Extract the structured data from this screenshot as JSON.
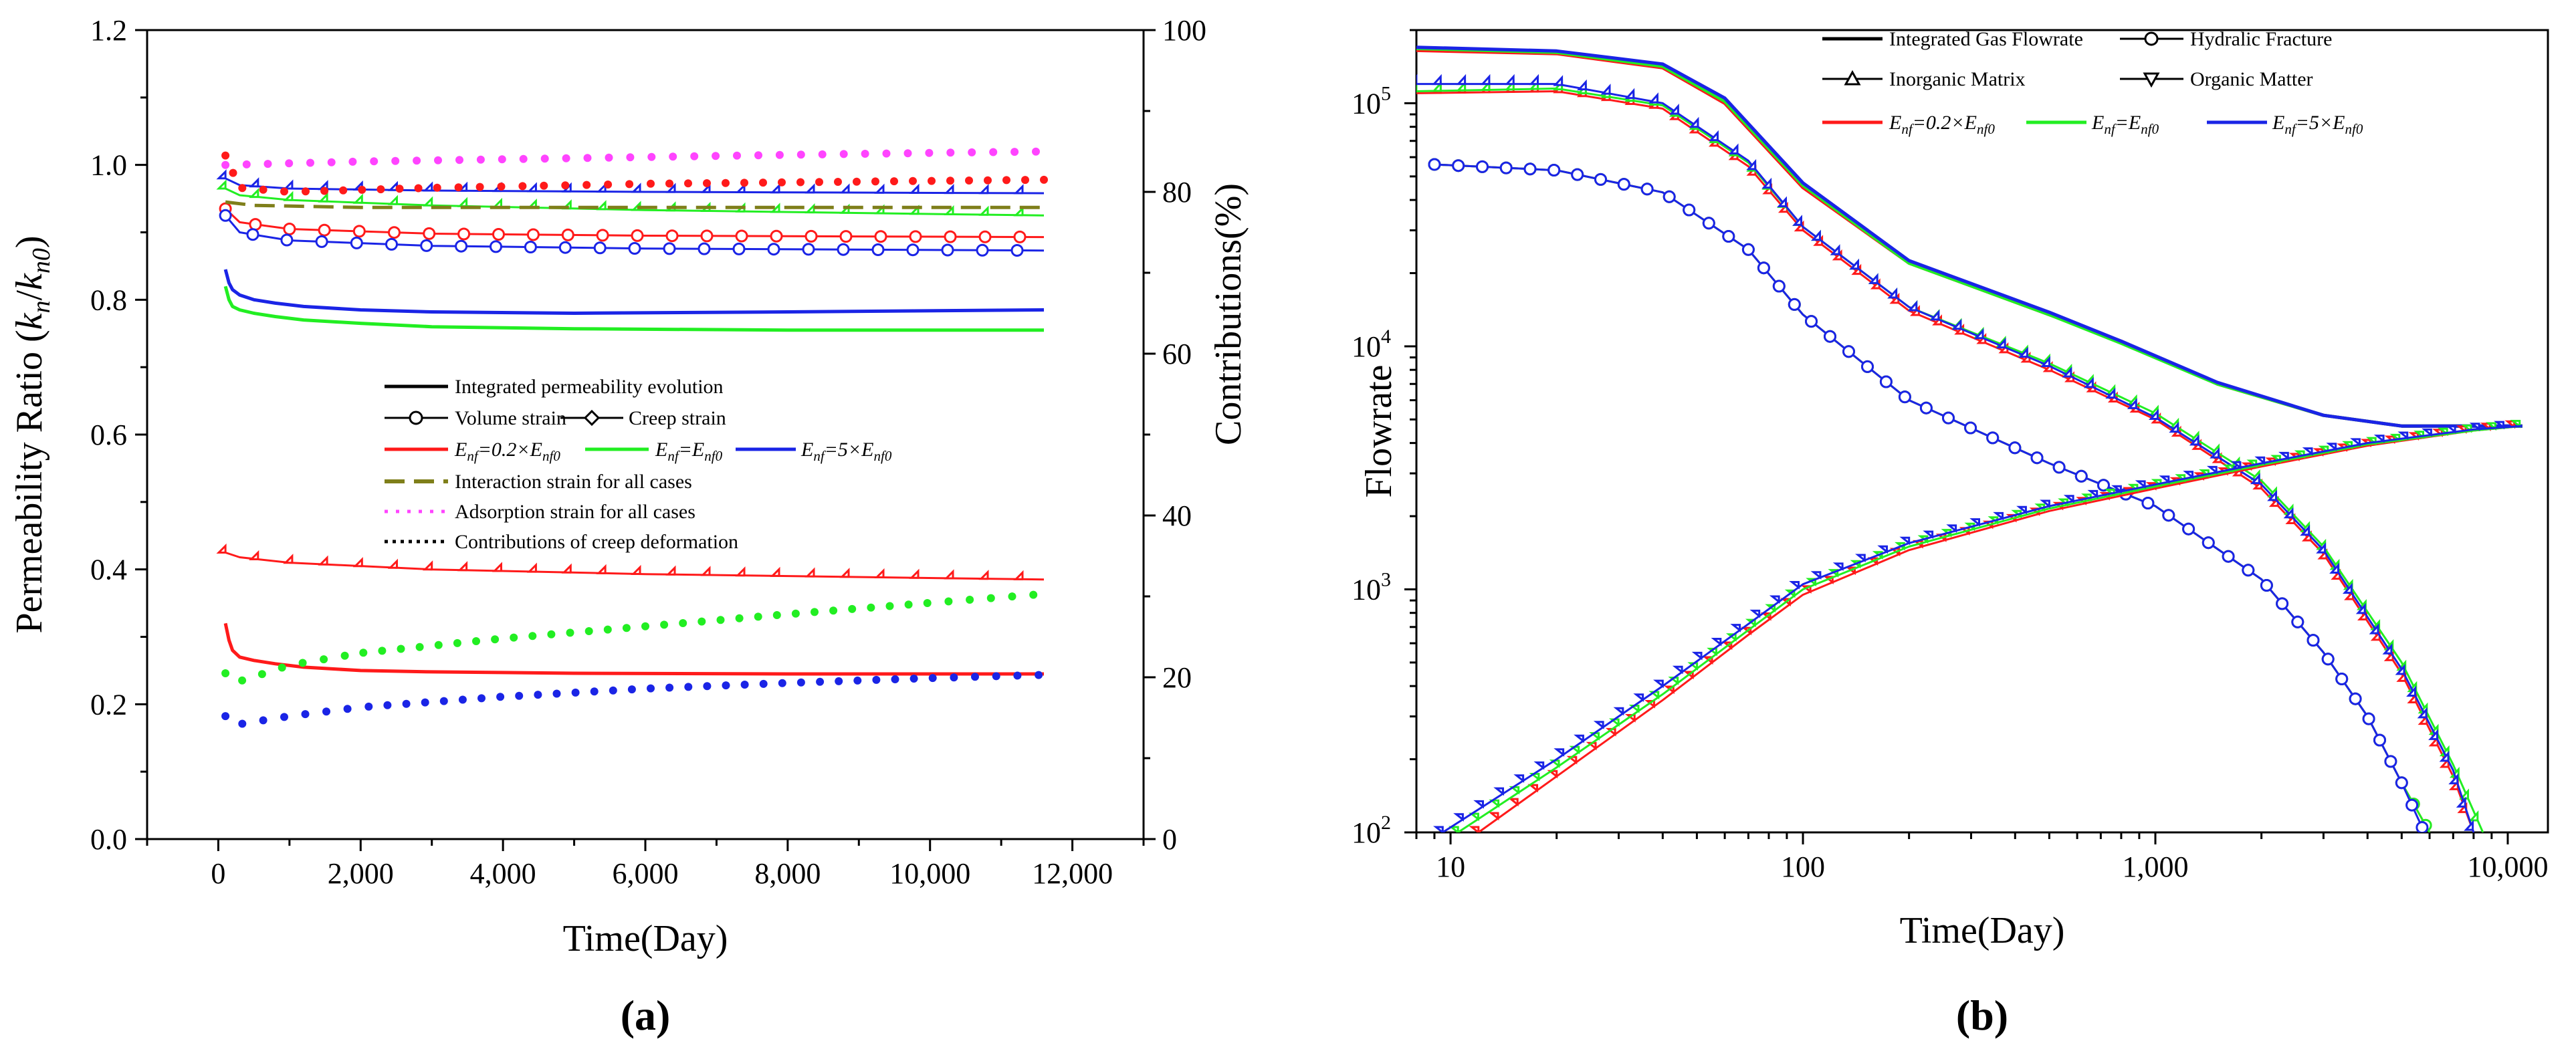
{
  "panel_labels": {
    "a": "(a)",
    "b": "(b)"
  },
  "colors": {
    "red": "#ff1a1a",
    "green": "#22ee22",
    "blue": "#1a24e6",
    "olive": "#7f7f1a",
    "magenta": "#ff44ff",
    "black": "#000000"
  },
  "chart_data": [
    {
      "id": "a",
      "type": "line",
      "xlabel": "Time(Day)",
      "ylabel": "Permeability Ratio (kn/kn0)",
      "ylabel_parts": {
        "main": "Permeability Ratio (",
        "k1": "k",
        "s1": "n",
        "slash": "/",
        "k2": "k",
        "s2": "n0",
        "end": ")"
      },
      "y2label": "Contributions(%)",
      "xlim": [
        -1000,
        13000
      ],
      "xticks": [
        0,
        2000,
        4000,
        6000,
        8000,
        10000,
        12000
      ],
      "xtick_labels": [
        "0",
        "2,000",
        "4,000",
        "6,000",
        "8,000",
        "10,000",
        "12,000"
      ],
      "ylim": [
        0,
        1.2
      ],
      "yticks": [
        0.0,
        0.2,
        0.4,
        0.6,
        0.8,
        1.0,
        1.2
      ],
      "ytick_labels": [
        "0.0",
        "0.2",
        "0.4",
        "0.6",
        "0.8",
        "1.0",
        "1.2"
      ],
      "y2lim": [
        0,
        100
      ],
      "y2ticks": [
        0,
        20,
        40,
        60,
        80,
        100
      ],
      "y2tick_labels": [
        "0",
        "20",
        "40",
        "60",
        "80",
        "100"
      ],
      "legend": {
        "position": "center",
        "rows": [
          [
            {
              "label": "Integrated permeability evolution",
              "style": "solid",
              "color": "black"
            }
          ],
          [
            {
              "label": "Volume strain",
              "style": "solid",
              "marker": "circle",
              "color": "black"
            },
            {
              "label": "Creep strain",
              "style": "solid",
              "marker": "diamond",
              "color": "black"
            }
          ],
          [
            {
              "label": "Enf=0.2×Enf0",
              "style": "solid",
              "color": "red"
            },
            {
              "label": "Enf=Enf0",
              "style": "solid",
              "color": "green"
            },
            {
              "label": "Enf=5×Enf0",
              "style": "solid",
              "color": "blue"
            }
          ],
          [
            {
              "label": "Interaction strain for all cases",
              "style": "dash",
              "color": "olive"
            }
          ],
          [
            {
              "label": "Adsorption strain for all cases",
              "style": "dot",
              "color": "magenta"
            }
          ],
          [
            {
              "label": "Contributions of creep deformation",
              "style": "dot",
              "color": "black"
            }
          ]
        ]
      },
      "series": [
        {
          "name": "Integrated permeability evolution, Enf=0.2×Enf0",
          "color": "red",
          "style": "solid",
          "axis": "left",
          "x": [
            100,
            150,
            200,
            300,
            500,
            800,
            1200,
            2000,
            3000,
            5000,
            8000,
            11600
          ],
          "y": [
            0.32,
            0.295,
            0.28,
            0.27,
            0.265,
            0.26,
            0.255,
            0.25,
            0.248,
            0.246,
            0.245,
            0.245
          ]
        },
        {
          "name": "Integrated permeability evolution, Enf=Enf0",
          "color": "green",
          "style": "solid",
          "axis": "left",
          "x": [
            100,
            150,
            200,
            300,
            500,
            800,
            1200,
            2000,
            3000,
            5000,
            8000,
            11600
          ],
          "y": [
            0.82,
            0.8,
            0.79,
            0.785,
            0.78,
            0.775,
            0.77,
            0.765,
            0.76,
            0.757,
            0.755,
            0.755
          ]
        },
        {
          "name": "Integrated permeability evolution, Enf=5×Enf0",
          "color": "blue",
          "style": "solid",
          "axis": "left",
          "x": [
            100,
            150,
            200,
            300,
            500,
            800,
            1200,
            2000,
            3000,
            5000,
            8000,
            11600
          ],
          "y": [
            0.845,
            0.825,
            0.815,
            0.807,
            0.8,
            0.795,
            0.79,
            0.785,
            0.782,
            0.78,
            0.782,
            0.785
          ]
        },
        {
          "name": "Volume strain, Enf=0.2×Enf0",
          "color": "red",
          "style": "solid",
          "marker": "circle",
          "axis": "left",
          "x": [
            100,
            300,
            1000,
            3000,
            6000,
            11600
          ],
          "y": [
            0.935,
            0.915,
            0.905,
            0.898,
            0.895,
            0.893
          ]
        },
        {
          "name": "Volume strain, Enf=5×Enf0",
          "color": "blue",
          "style": "solid",
          "marker": "circle",
          "axis": "left",
          "x": [
            100,
            300,
            1000,
            3000,
            6000,
            11600
          ],
          "y": [
            0.925,
            0.9,
            0.888,
            0.88,
            0.876,
            0.873
          ]
        },
        {
          "name": "Creep strain, Enf=0.2×Enf0",
          "color": "red",
          "style": "solid",
          "marker": "diamond",
          "axis": "left",
          "x": [
            100,
            300,
            1000,
            3000,
            6000,
            11600
          ],
          "y": [
            0.425,
            0.418,
            0.41,
            0.4,
            0.393,
            0.385
          ]
        },
        {
          "name": "Creep strain, Enf=Enf0",
          "color": "green",
          "style": "solid",
          "marker": "diamond",
          "axis": "left",
          "x": [
            100,
            300,
            1000,
            3000,
            6000,
            11600
          ],
          "y": [
            0.965,
            0.955,
            0.948,
            0.94,
            0.933,
            0.925
          ]
        },
        {
          "name": "Creep strain, Enf=5×Enf0",
          "color": "blue",
          "style": "solid",
          "marker": "diamond",
          "axis": "left",
          "x": [
            100,
            300,
            1000,
            3000,
            6000,
            11600
          ],
          "y": [
            0.98,
            0.97,
            0.965,
            0.962,
            0.96,
            0.958
          ]
        },
        {
          "name": "Interaction strain for all cases",
          "color": "olive",
          "style": "dash",
          "axis": "left",
          "x": [
            100,
            500,
            2000,
            6000,
            11600
          ],
          "y": [
            0.945,
            0.94,
            0.937,
            0.937,
            0.937
          ]
        },
        {
          "name": "Adsorption strain for all cases",
          "color": "magenta",
          "style": "dot",
          "axis": "left",
          "x": [
            100,
            2000,
            5000,
            8000,
            11600
          ],
          "y": [
            1.0,
            1.005,
            1.01,
            1.015,
            1.02
          ]
        },
        {
          "name": "Contributions of creep deformation, Enf=0.2×Enf0",
          "color": "red",
          "style": "dot",
          "axis": "right",
          "x": [
            100,
            300,
            1000,
            3000,
            6000,
            11600
          ],
          "y": [
            84.5,
            80.5,
            80.0,
            80.5,
            81.0,
            81.5
          ]
        },
        {
          "name": "Contributions of creep deformation, Enf=Enf0",
          "color": "green",
          "style": "dot",
          "axis": "right",
          "x": [
            100,
            300,
            1000,
            2000,
            4000,
            6000,
            8000,
            10000,
            11600
          ],
          "y": [
            20.5,
            19.5,
            21.5,
            23.0,
            24.8,
            26.3,
            27.8,
            29.2,
            30.3
          ]
        },
        {
          "name": "Contributions of creep deformation, Enf=5×Enf0",
          "color": "blue",
          "style": "dot",
          "axis": "right",
          "x": [
            100,
            300,
            1000,
            2000,
            4000,
            6000,
            8000,
            10000,
            11600
          ],
          "y": [
            15.2,
            14.2,
            15.2,
            16.3,
            17.6,
            18.6,
            19.3,
            19.9,
            20.3
          ]
        }
      ]
    },
    {
      "id": "b",
      "type": "line",
      "xscale": "log",
      "yscale": "log",
      "xlabel": "Time(Day)",
      "ylabel": "Flowrate",
      "xlim": [
        8,
        13000
      ],
      "xticks": [
        10,
        100,
        1000,
        10000
      ],
      "xtick_labels": [
        "10",
        "100",
        "1,000",
        "10,000"
      ],
      "ylim": [
        100,
        200000
      ],
      "yticks": [
        100,
        1000,
        10000,
        100000
      ],
      "ytick_labels": [
        {
          "base": "10",
          "exp": "2"
        },
        {
          "base": "10",
          "exp": "3"
        },
        {
          "base": "10",
          "exp": "4"
        },
        {
          "base": "10",
          "exp": "5"
        }
      ],
      "legend": {
        "position": "top",
        "rows": [
          [
            {
              "label": "Integrated Gas Flowrate",
              "style": "solid",
              "color": "black"
            },
            {
              "label": "Hydralic Fracture",
              "style": "solid",
              "marker": "circle",
              "color": "black"
            }
          ],
          [
            {
              "label": "Inorganic Matrix",
              "style": "solid",
              "marker": "triangle-up",
              "color": "black"
            },
            {
              "label": "Organic Matter",
              "style": "solid",
              "marker": "triangle-down",
              "color": "black"
            }
          ],
          [
            {
              "label": "Enf=0.2×Enf0",
              "style": "solid",
              "color": "red"
            },
            {
              "label": "Enf=Enf0",
              "style": "solid",
              "color": "green"
            },
            {
              "label": "Enf=5×Enf0",
              "style": "solid",
              "color": "blue"
            }
          ]
        ]
      },
      "series": [
        {
          "name": "Integrated Gas Flowrate, Enf=0.2×Enf0",
          "color": "red",
          "style": "solid",
          "x": [
            8,
            20,
            40,
            60,
            100,
            200,
            500,
            800,
            1500,
            3000,
            5000,
            11000
          ],
          "y": [
            165000,
            160000,
            140000,
            100000,
            45000,
            22000,
            13500,
            10500,
            7000,
            5200,
            4700,
            4700
          ]
        },
        {
          "name": "Integrated Gas Flowrate, Enf=Enf0",
          "color": "green",
          "style": "solid",
          "x": [
            8,
            20,
            40,
            60,
            100,
            200,
            500,
            800,
            1500,
            3000,
            5000,
            11000
          ],
          "y": [
            168000,
            162000,
            142000,
            102000,
            46000,
            22000,
            13500,
            10300,
            7000,
            5200,
            4700,
            4700
          ]
        },
        {
          "name": "Integrated Gas Flowrate, Enf=5×Enf0",
          "color": "blue",
          "style": "solid",
          "x": [
            8,
            20,
            40,
            60,
            100,
            200,
            500,
            800,
            1500,
            3000,
            5000,
            11000
          ],
          "y": [
            170000,
            164000,
            145000,
            105000,
            47000,
            22500,
            13800,
            10500,
            7100,
            5200,
            4700,
            4700
          ]
        },
        {
          "name": "Hydralic Fracture, Enf=0.2×Enf0",
          "color": "red",
          "style": "solid",
          "marker": "circle",
          "x": [
            9,
            20,
            40,
            70,
            100,
            200,
            500,
            1000,
            2000,
            3000,
            4000,
            5000,
            6000
          ],
          "y": [
            56000,
            53000,
            43000,
            25000,
            13500,
            6000,
            3300,
            2200,
            1100,
            550,
            300,
            160,
            100
          ]
        },
        {
          "name": "Hydralic Fracture, Enf=Enf0",
          "color": "green",
          "style": "solid",
          "marker": "circle",
          "x": [
            9,
            20,
            40,
            70,
            100,
            200,
            500,
            1000,
            2000,
            3000,
            4000,
            5000,
            6000
          ],
          "y": [
            56000,
            53000,
            43000,
            25000,
            13500,
            6000,
            3300,
            2200,
            1100,
            550,
            300,
            160,
            100
          ]
        },
        {
          "name": "Hydralic Fracture, Enf=5×Enf0",
          "color": "blue",
          "style": "solid",
          "marker": "circle",
          "x": [
            9,
            20,
            40,
            70,
            100,
            200,
            500,
            1000,
            2000,
            3000,
            4000,
            5000,
            5800
          ],
          "y": [
            56000,
            53000,
            43000,
            25000,
            13500,
            6000,
            3300,
            2200,
            1100,
            550,
            300,
            160,
            100
          ]
        },
        {
          "name": "Inorganic Matrix, Enf=0.2×Enf0",
          "color": "red",
          "style": "solid",
          "marker": "triangle-up",
          "x": [
            8,
            20,
            40,
            70,
            100,
            200,
            500,
            1000,
            2000,
            3000,
            5000,
            7000,
            8000
          ],
          "y": [
            110000,
            112000,
            95000,
            55000,
            30000,
            14000,
            8000,
            5000,
            2600,
            1400,
            450,
            170,
            100
          ]
        },
        {
          "name": "Inorganic Matrix, Enf=Enf0",
          "color": "green",
          "style": "solid",
          "marker": "triangle-up",
          "x": [
            8,
            20,
            40,
            70,
            100,
            200,
            500,
            1000,
            2000,
            3000,
            5000,
            7000,
            8500
          ],
          "y": [
            112000,
            115000,
            98000,
            57000,
            31000,
            14500,
            8500,
            5300,
            2800,
            1500,
            500,
            190,
            100
          ]
        },
        {
          "name": "Inorganic Matrix, Enf=5×Enf0",
          "color": "blue",
          "style": "solid",
          "marker": "triangle-up",
          "x": [
            8,
            20,
            40,
            70,
            100,
            200,
            500,
            1000,
            2000,
            3000,
            5000,
            7000,
            8000
          ],
          "y": [
            120000,
            120000,
            100000,
            58000,
            31000,
            14500,
            8300,
            5100,
            2700,
            1450,
            470,
            180,
            100
          ]
        },
        {
          "name": "Organic Matter, Enf=0.2×Enf0",
          "color": "red",
          "style": "solid",
          "marker": "triangle-down",
          "x": [
            12,
            20,
            40,
            70,
            100,
            200,
            500,
            1000,
            2000,
            4000,
            8000,
            11000
          ],
          "y": [
            100,
            170,
            350,
            650,
            950,
            1450,
            2100,
            2600,
            3200,
            3900,
            4500,
            4700
          ]
        },
        {
          "name": "Organic Matter, Enf=Enf0",
          "color": "green",
          "style": "solid",
          "marker": "triangle-down",
          "x": [
            10.5,
            20,
            40,
            70,
            100,
            200,
            500,
            1000,
            2000,
            4000,
            8000,
            11000
          ],
          "y": [
            100,
            185,
            370,
            680,
            1000,
            1500,
            2150,
            2650,
            3250,
            3950,
            4500,
            4700
          ]
        },
        {
          "name": "Organic Matter, Enf=5×Enf0",
          "color": "blue",
          "style": "solid",
          "marker": "triangle-down",
          "x": [
            9.5,
            20,
            40,
            70,
            100,
            200,
            500,
            1000,
            2000,
            4000,
            8000,
            11000
          ],
          "y": [
            100,
            200,
            400,
            720,
            1050,
            1550,
            2200,
            2700,
            3300,
            4000,
            4550,
            4700
          ]
        }
      ]
    }
  ]
}
